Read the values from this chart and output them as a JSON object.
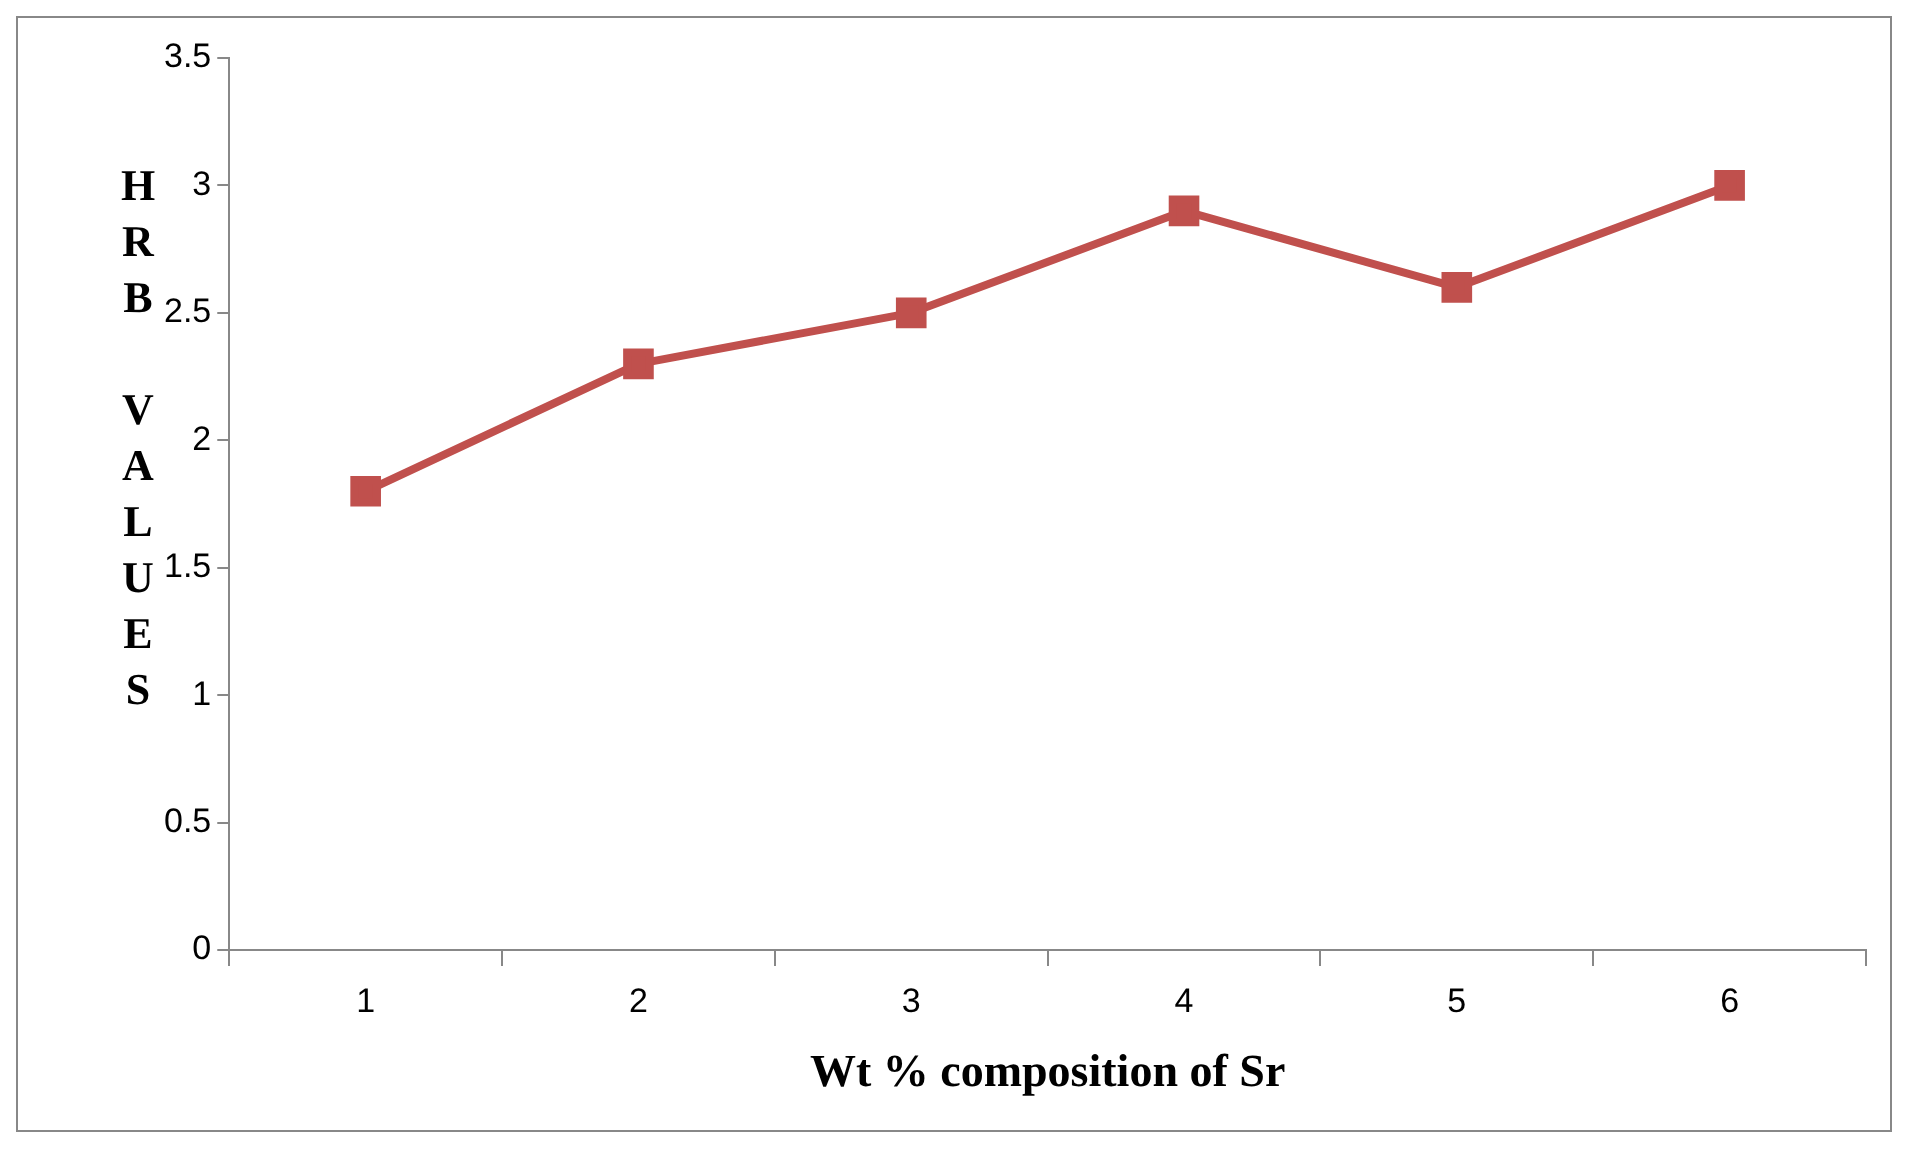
{
  "chart_data": {
    "type": "line",
    "xlabel": "Wt % composition of Sr",
    "ylabel": "HRB VALUES",
    "categories": [
      "1",
      "2",
      "3",
      "4",
      "5",
      "6"
    ],
    "series": [
      {
        "color": "#c0504d",
        "values": [
          1.8,
          2.3,
          2.5,
          2.9,
          2.6,
          3.0
        ]
      }
    ],
    "ylim": [
      0,
      3.5
    ],
    "yticks": [
      0,
      0.5,
      1,
      1.5,
      2,
      2.5,
      3,
      3.5
    ],
    "grid": false,
    "legend": false,
    "marker": "square",
    "line_style": "solid"
  }
}
